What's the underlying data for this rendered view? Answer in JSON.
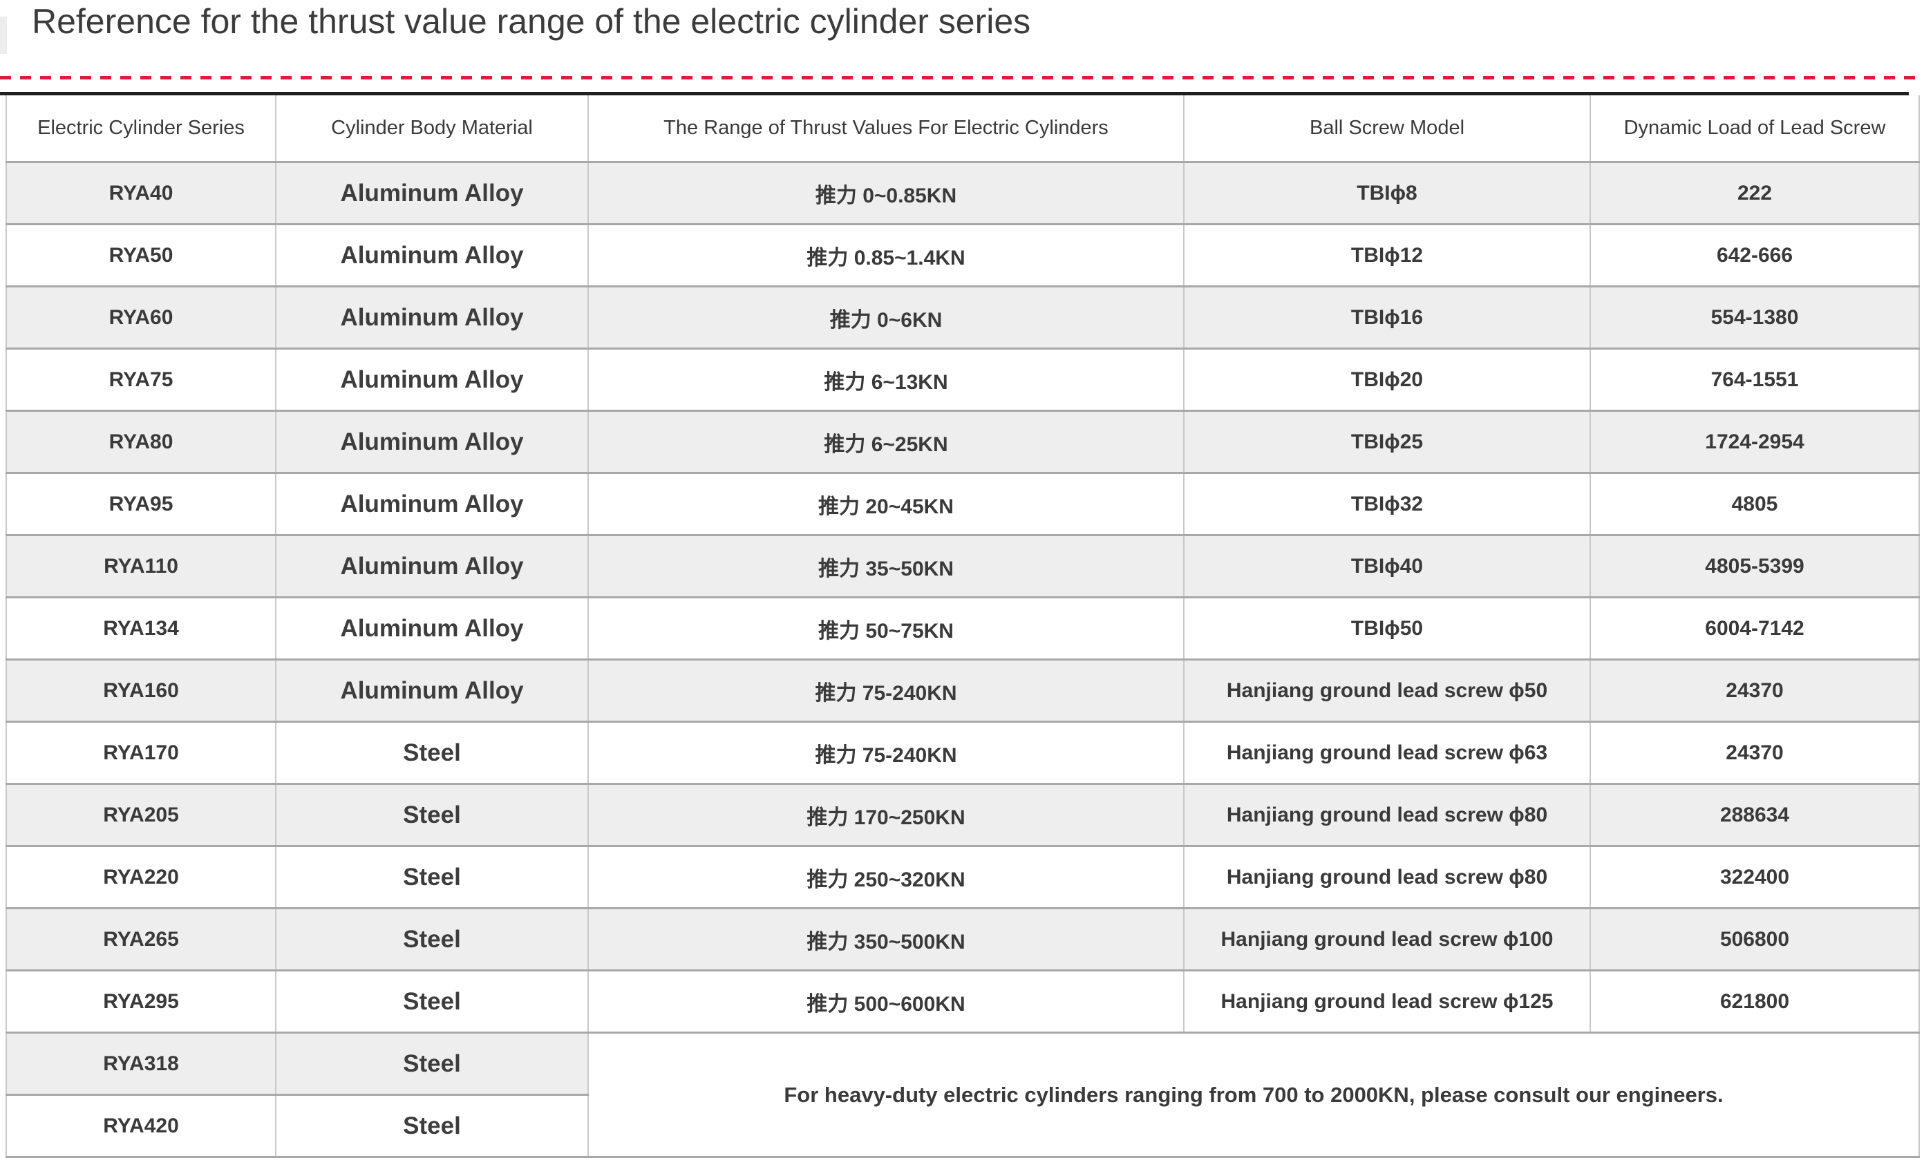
{
  "page": {
    "title": "Reference for the thrust value range of the electric cylinder series"
  },
  "colors": {
    "accent_red": "#e11a3c",
    "top_rule_dark": "#1f1f1f",
    "row_stripe_gray": "#efeeee",
    "border_vertical": "#c9c9c9",
    "border_horizontal": "#a8a8a8",
    "text": "#3a3a3a"
  },
  "table": {
    "columns": [
      "Electric Cylinder Series",
      "Cylinder Body Material",
      "The Range of Thrust Values For Electric Cylinders",
      "Ball Screw Model",
      "Dynamic Load of Lead Screw"
    ],
    "rows": [
      {
        "series": "RYA40",
        "material": "Aluminum Alloy",
        "thrust": "推力 0~0.85KN",
        "ball_screw": "TBIϕ8",
        "dynamic_load": "222"
      },
      {
        "series": "RYA50",
        "material": "Aluminum Alloy",
        "thrust": "推力 0.85~1.4KN",
        "ball_screw": "TBIϕ12",
        "dynamic_load": "642-666"
      },
      {
        "series": "RYA60",
        "material": "Aluminum Alloy",
        "thrust": "推力 0~6KN",
        "ball_screw": "TBIϕ16",
        "dynamic_load": "554-1380"
      },
      {
        "series": "RYA75",
        "material": "Aluminum Alloy",
        "thrust": "推力 6~13KN",
        "ball_screw": "TBIϕ20",
        "dynamic_load": "764-1551"
      },
      {
        "series": "RYA80",
        "material": "Aluminum Alloy",
        "thrust": "推力 6~25KN",
        "ball_screw": "TBIϕ25",
        "dynamic_load": "1724-2954"
      },
      {
        "series": "RYA95",
        "material": "Aluminum Alloy",
        "thrust": "推力 20~45KN",
        "ball_screw": "TBIϕ32",
        "dynamic_load": "4805"
      },
      {
        "series": "RYA110",
        "material": "Aluminum Alloy",
        "thrust": "推力 35~50KN",
        "ball_screw": "TBIϕ40",
        "dynamic_load": "4805-5399"
      },
      {
        "series": "RYA134",
        "material": "Aluminum Alloy",
        "thrust": "推力 50~75KN",
        "ball_screw": "TBIϕ50",
        "dynamic_load": "6004-7142"
      },
      {
        "series": "RYA160",
        "material": "Aluminum Alloy",
        "thrust": "推力 75-240KN",
        "ball_screw": "Hanjiang ground lead screw ϕ50",
        "dynamic_load": "24370"
      },
      {
        "series": "RYA170",
        "material": "Steel",
        "thrust": "推力 75-240KN",
        "ball_screw": "Hanjiang ground lead screw ϕ63",
        "dynamic_load": "24370"
      },
      {
        "series": "RYA205",
        "material": "Steel",
        "thrust": "推力 170~250KN",
        "ball_screw": "Hanjiang ground lead screw ϕ80",
        "dynamic_load": "288634"
      },
      {
        "series": "RYA220",
        "material": "Steel",
        "thrust": "推力 250~320KN",
        "ball_screw": "Hanjiang ground lead screw ϕ80",
        "dynamic_load": "322400"
      },
      {
        "series": "RYA265",
        "material": "Steel",
        "thrust": "推力 350~500KN",
        "ball_screw": "Hanjiang ground lead screw ϕ100",
        "dynamic_load": "506800"
      },
      {
        "series": "RYA295",
        "material": "Steel",
        "thrust": "推力 500~600KN",
        "ball_screw": "Hanjiang ground lead screw ϕ125",
        "dynamic_load": "621800"
      },
      {
        "series": "RYA318",
        "material": "Steel",
        "merged_note": true
      },
      {
        "series": "RYA420",
        "material": "Steel"
      }
    ],
    "note": "For heavy-duty electric cylinders ranging from 700 to 2000KN, please consult our engineers."
  }
}
